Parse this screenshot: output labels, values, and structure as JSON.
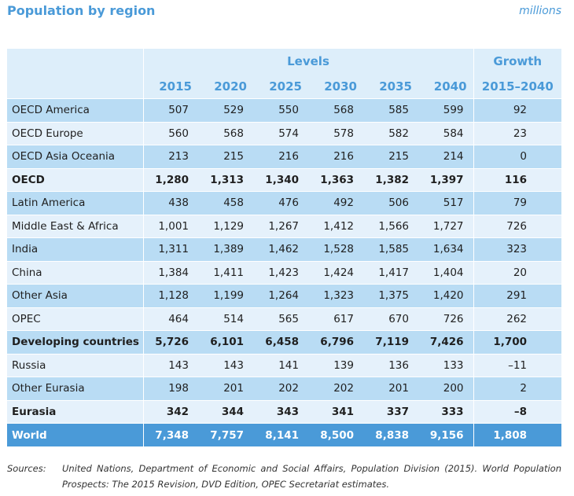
{
  "title": "Population by region",
  "units": "millions",
  "chart_data": {
    "type": "table",
    "title": "Population by region",
    "units": "millions",
    "group_headers": {
      "levels": "Levels",
      "growth": "Growth"
    },
    "columns": [
      "2015",
      "2020",
      "2025",
      "2030",
      "2035",
      "2040"
    ],
    "growth_column": "2015–2040",
    "rows": [
      {
        "region": "OECD America",
        "values": [
          "507",
          "529",
          "550",
          "568",
          "585",
          "599"
        ],
        "growth": "92",
        "bold": false,
        "shade": "dark"
      },
      {
        "region": "OECD Europe",
        "values": [
          "560",
          "568",
          "574",
          "578",
          "582",
          "584"
        ],
        "growth": "23",
        "bold": false,
        "shade": "light"
      },
      {
        "region": "OECD Asia Oceania",
        "values": [
          "213",
          "215",
          "216",
          "216",
          "215",
          "214"
        ],
        "growth": "0",
        "bold": false,
        "shade": "dark"
      },
      {
        "region": "OECD",
        "values": [
          "1,280",
          "1,313",
          "1,340",
          "1,363",
          "1,382",
          "1,397"
        ],
        "growth": "116",
        "bold": true,
        "shade": "light"
      },
      {
        "region": "Latin America",
        "values": [
          "438",
          "458",
          "476",
          "492",
          "506",
          "517"
        ],
        "growth": "79",
        "bold": false,
        "shade": "dark"
      },
      {
        "region": "Middle East & Africa",
        "values": [
          "1,001",
          "1,129",
          "1,267",
          "1,412",
          "1,566",
          "1,727"
        ],
        "growth": "726",
        "bold": false,
        "shade": "light"
      },
      {
        "region": "India",
        "values": [
          "1,311",
          "1,389",
          "1,462",
          "1,528",
          "1,585",
          "1,634"
        ],
        "growth": "323",
        "bold": false,
        "shade": "dark"
      },
      {
        "region": "China",
        "values": [
          "1,384",
          "1,411",
          "1,423",
          "1,424",
          "1,417",
          "1,404"
        ],
        "growth": "20",
        "bold": false,
        "shade": "light"
      },
      {
        "region": "Other Asia",
        "values": [
          "1,128",
          "1,199",
          "1,264",
          "1,323",
          "1,375",
          "1,420"
        ],
        "growth": "291",
        "bold": false,
        "shade": "dark"
      },
      {
        "region": "OPEC",
        "values": [
          "464",
          "514",
          "565",
          "617",
          "670",
          "726"
        ],
        "growth": "262",
        "bold": false,
        "shade": "light"
      },
      {
        "region": "Developing countries",
        "values": [
          "5,726",
          "6,101",
          "6,458",
          "6,796",
          "7,119",
          "7,426"
        ],
        "growth": "1,700",
        "bold": true,
        "shade": "dark"
      },
      {
        "region": "Russia",
        "values": [
          "143",
          "143",
          "141",
          "139",
          "136",
          "133"
        ],
        "growth": "–11",
        "bold": false,
        "shade": "light"
      },
      {
        "region": "Other Eurasia",
        "values": [
          "198",
          "201",
          "202",
          "202",
          "201",
          "200"
        ],
        "growth": "2",
        "bold": false,
        "shade": "dark"
      },
      {
        "region": "Eurasia",
        "values": [
          "342",
          "344",
          "343",
          "341",
          "337",
          "333"
        ],
        "growth": "–8",
        "bold": true,
        "shade": "light"
      },
      {
        "region": "World",
        "values": [
          "7,348",
          "7,757",
          "8,141",
          "8,500",
          "8,838",
          "9,156"
        ],
        "growth": "1,808",
        "bold": true,
        "shade": "world"
      }
    ]
  },
  "sources": {
    "label": "Sources:",
    "text": "United Nations, Department of Economic and Social Affairs, Population Division (2015). World Population Prospects: The 2015 Revision, DVD Edition, OPEC Secretariat estimates."
  },
  "colors": {
    "accent": "#4a9ad8",
    "row_dark": "#b9dcf4",
    "row_light": "#e5f1fb",
    "header_bg": "#ddeefa"
  }
}
